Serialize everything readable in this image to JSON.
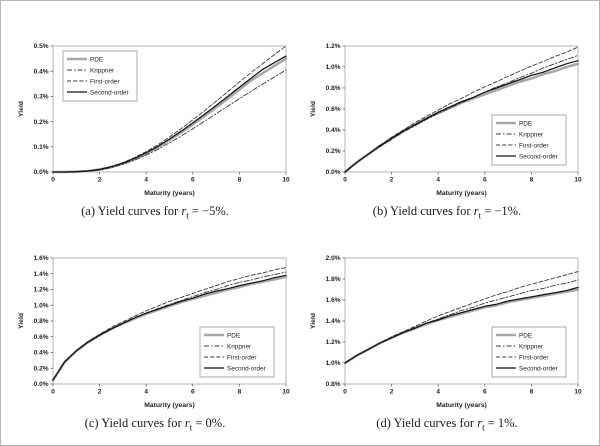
{
  "panels": [
    {
      "id": "a",
      "caption_prefix": "(a) Yield curves for ",
      "caption_var": "r",
      "caption_sub": "t",
      "caption_suffix": " = −5%."
    },
    {
      "id": "b",
      "caption_prefix": "(b) Yield curves for ",
      "caption_var": "r",
      "caption_sub": "t",
      "caption_suffix": " = −1%."
    },
    {
      "id": "c",
      "caption_prefix": "(c) Yield curves for ",
      "caption_var": "r",
      "caption_sub": "t",
      "caption_suffix": " = 0%."
    },
    {
      "id": "d",
      "caption_prefix": "(d) Yield curves for ",
      "caption_var": "r",
      "caption_sub": "t",
      "caption_suffix": " = 1%."
    }
  ],
  "colors": {
    "pde_line": "#a8a8a8",
    "dark_line": "#3a3a3a",
    "solid_line": "#151515",
    "plot_border": "#999999",
    "legend_border": "#888888"
  },
  "chart_data": [
    {
      "type": "line",
      "title": "",
      "xlabel": "Maturity (years)",
      "ylabel": "Yield",
      "xlim": [
        0,
        10
      ],
      "ylim": [
        0,
        0.5
      ],
      "xtick_values": [
        0,
        2,
        4,
        6,
        8,
        10
      ],
      "xtick_labels": [
        "0",
        "2",
        "4",
        "6",
        "8",
        "10"
      ],
      "ytick_values": [
        0,
        0.1,
        0.2,
        0.3,
        0.4,
        0.5
      ],
      "ytick_labels": [
        "0.0%",
        "0.1%",
        "0.2%",
        "0.3%",
        "0.4%",
        "0.5%"
      ],
      "legend_position": "top-left",
      "x": [
        0,
        0.5,
        1,
        1.5,
        2,
        2.5,
        3,
        3.5,
        4,
        4.5,
        5,
        5.5,
        6,
        6.5,
        7,
        7.5,
        8,
        8.5,
        9,
        9.5,
        10
      ],
      "series": [
        {
          "name": "PDE",
          "style": "pde",
          "values": [
            0,
            0,
            0.001,
            0.004,
            0.01,
            0.02,
            0.034,
            0.052,
            0.074,
            0.099,
            0.127,
            0.157,
            0.189,
            0.222,
            0.256,
            0.291,
            0.327,
            0.363,
            0.392,
            0.421,
            0.45
          ]
        },
        {
          "name": "Krippner",
          "style": "dashdot",
          "values": [
            0,
            0,
            0.001,
            0.003,
            0.008,
            0.017,
            0.03,
            0.047,
            0.067,
            0.09,
            0.116,
            0.143,
            0.172,
            0.201,
            0.231,
            0.261,
            0.291,
            0.32,
            0.349,
            0.377,
            0.405
          ]
        },
        {
          "name": "First-order",
          "style": "dashed",
          "values": [
            0,
            0,
            0.001,
            0.004,
            0.011,
            0.022,
            0.037,
            0.057,
            0.081,
            0.108,
            0.139,
            0.172,
            0.207,
            0.243,
            0.281,
            0.319,
            0.357,
            0.394,
            0.43,
            0.466,
            0.5
          ]
        },
        {
          "name": "Second-order",
          "style": "solid",
          "values": [
            0,
            0,
            0.001,
            0.004,
            0.01,
            0.021,
            0.035,
            0.054,
            0.076,
            0.102,
            0.131,
            0.162,
            0.195,
            0.229,
            0.264,
            0.3,
            0.336,
            0.372,
            0.407,
            0.434,
            0.46
          ]
        }
      ]
    },
    {
      "type": "line",
      "title": "",
      "xlabel": "Maturity (years)",
      "ylabel": "Yield",
      "xlim": [
        0,
        10
      ],
      "ylim": [
        0,
        1.2
      ],
      "xtick_values": [
        0,
        2,
        4,
        6,
        8,
        10
      ],
      "xtick_labels": [
        "0",
        "2",
        "4",
        "6",
        "8",
        "10"
      ],
      "ytick_values": [
        0,
        0.2,
        0.4,
        0.6,
        0.8,
        1.0,
        1.2
      ],
      "ytick_labels": [
        "0.0%",
        "0.2%",
        "0.4%",
        "0.6%",
        "0.8%",
        "1.0%",
        "1.2%"
      ],
      "legend_position": "bottom-right",
      "x": [
        0,
        0.5,
        1,
        1.5,
        2,
        2.5,
        3,
        3.5,
        4,
        4.5,
        5,
        5.5,
        6,
        6.5,
        7,
        7.5,
        8,
        8.5,
        9,
        9.5,
        10
      ],
      "series": [
        {
          "name": "PDE",
          "style": "pde",
          "values": [
            0,
            0.09,
            0.17,
            0.25,
            0.32,
            0.39,
            0.45,
            0.51,
            0.56,
            0.61,
            0.66,
            0.7,
            0.74,
            0.78,
            0.82,
            0.86,
            0.89,
            0.93,
            0.96,
            1.0,
            1.03
          ]
        },
        {
          "name": "Krippner",
          "style": "dashdot",
          "values": [
            0,
            0.09,
            0.17,
            0.24,
            0.31,
            0.38,
            0.44,
            0.5,
            0.56,
            0.61,
            0.66,
            0.71,
            0.76,
            0.81,
            0.85,
            0.9,
            0.94,
            0.99,
            1.03,
            1.07,
            1.11
          ]
        },
        {
          "name": "First-order",
          "style": "dashed",
          "values": [
            0,
            0.09,
            0.17,
            0.25,
            0.33,
            0.4,
            0.47,
            0.53,
            0.59,
            0.65,
            0.7,
            0.76,
            0.81,
            0.86,
            0.91,
            0.96,
            1.01,
            1.05,
            1.1,
            1.14,
            1.19
          ]
        },
        {
          "name": "Second-order",
          "style": "solid",
          "values": [
            0,
            0.09,
            0.17,
            0.25,
            0.32,
            0.39,
            0.45,
            0.51,
            0.57,
            0.62,
            0.67,
            0.71,
            0.76,
            0.8,
            0.84,
            0.88,
            0.92,
            0.95,
            0.99,
            1.03,
            1.06
          ]
        }
      ]
    },
    {
      "type": "line",
      "title": "",
      "xlabel": "Maturity (years)",
      "ylabel": "Yield",
      "xlim": [
        0,
        10
      ],
      "ylim": [
        0,
        1.6
      ],
      "xtick_values": [
        0,
        2,
        4,
        6,
        8,
        10
      ],
      "xtick_labels": [
        "0",
        "2",
        "4",
        "6",
        "8",
        "10"
      ],
      "ytick_values": [
        0,
        0.2,
        0.4,
        0.6,
        0.8,
        1.0,
        1.2,
        1.4,
        1.6
      ],
      "ytick_labels": [
        "0.0%",
        "0.2%",
        "0.4%",
        "0.6%",
        "0.8%",
        "1.0%",
        "1.2%",
        "1.4%",
        "1.6%"
      ],
      "legend_position": "bottom-right",
      "x": [
        0,
        0.5,
        1,
        1.5,
        2,
        2.5,
        3,
        3.5,
        4,
        4.5,
        5,
        5.5,
        6,
        6.5,
        7,
        7.5,
        8,
        8.5,
        9,
        9.5,
        10
      ],
      "series": [
        {
          "name": "PDE",
          "style": "pde",
          "values": [
            0.05,
            0.28,
            0.42,
            0.53,
            0.62,
            0.7,
            0.77,
            0.83,
            0.89,
            0.94,
            0.99,
            1.04,
            1.08,
            1.12,
            1.16,
            1.2,
            1.23,
            1.27,
            1.3,
            1.33,
            1.36
          ]
        },
        {
          "name": "Krippner",
          "style": "dashdot",
          "values": [
            0.05,
            0.28,
            0.42,
            0.53,
            0.62,
            0.7,
            0.77,
            0.84,
            0.9,
            0.96,
            1.01,
            1.06,
            1.11,
            1.16,
            1.2,
            1.25,
            1.29,
            1.32,
            1.36,
            1.39,
            1.42
          ]
        },
        {
          "name": "First-order",
          "style": "dashed",
          "values": [
            0.05,
            0.28,
            0.42,
            0.54,
            0.63,
            0.72,
            0.79,
            0.86,
            0.93,
            0.99,
            1.05,
            1.1,
            1.15,
            1.2,
            1.25,
            1.3,
            1.34,
            1.38,
            1.41,
            1.45,
            1.48
          ]
        },
        {
          "name": "Second-order",
          "style": "solid",
          "values": [
            0.05,
            0.28,
            0.42,
            0.53,
            0.62,
            0.7,
            0.77,
            0.84,
            0.9,
            0.95,
            1.0,
            1.05,
            1.09,
            1.14,
            1.18,
            1.21,
            1.25,
            1.28,
            1.31,
            1.35,
            1.38
          ]
        }
      ]
    },
    {
      "type": "line",
      "title": "",
      "xlabel": "Maturity (years)",
      "ylabel": "Yield",
      "xlim": [
        0,
        10
      ],
      "ylim": [
        0.8,
        2.0
      ],
      "xtick_values": [
        0,
        2,
        4,
        6,
        8,
        10
      ],
      "xtick_labels": [
        "0",
        "2",
        "4",
        "6",
        "8",
        "10"
      ],
      "ytick_values": [
        0.8,
        1.0,
        1.2,
        1.4,
        1.6,
        1.8,
        2.0
      ],
      "ytick_labels": [
        "0.8%",
        "1.0%",
        "1.2%",
        "1.4%",
        "1.6%",
        "1.8%",
        "2.0%"
      ],
      "legend_position": "bottom-right",
      "x": [
        0,
        0.5,
        1,
        1.5,
        2,
        2.5,
        3,
        3.5,
        4,
        4.5,
        5,
        5.5,
        6,
        6.5,
        7,
        7.5,
        8,
        8.5,
        9,
        9.5,
        10
      ],
      "series": [
        {
          "name": "PDE",
          "style": "pde",
          "values": [
            1.0,
            1.07,
            1.13,
            1.19,
            1.24,
            1.29,
            1.33,
            1.37,
            1.41,
            1.44,
            1.47,
            1.5,
            1.53,
            1.55,
            1.58,
            1.6,
            1.62,
            1.64,
            1.66,
            1.68,
            1.7
          ]
        },
        {
          "name": "Krippner",
          "style": "dashdot",
          "values": [
            1.0,
            1.07,
            1.13,
            1.19,
            1.24,
            1.29,
            1.34,
            1.38,
            1.42,
            1.46,
            1.5,
            1.53,
            1.57,
            1.6,
            1.63,
            1.66,
            1.69,
            1.71,
            1.74,
            1.76,
            1.79
          ]
        },
        {
          "name": "First-order",
          "style": "dashed",
          "values": [
            1.0,
            1.07,
            1.13,
            1.19,
            1.25,
            1.3,
            1.35,
            1.4,
            1.45,
            1.49,
            1.53,
            1.57,
            1.61,
            1.65,
            1.68,
            1.72,
            1.75,
            1.78,
            1.81,
            1.84,
            1.87
          ]
        },
        {
          "name": "Second-order",
          "style": "solid",
          "values": [
            1.0,
            1.07,
            1.13,
            1.19,
            1.24,
            1.29,
            1.33,
            1.38,
            1.41,
            1.45,
            1.48,
            1.51,
            1.54,
            1.56,
            1.59,
            1.61,
            1.63,
            1.65,
            1.67,
            1.69,
            1.72
          ]
        }
      ]
    }
  ]
}
